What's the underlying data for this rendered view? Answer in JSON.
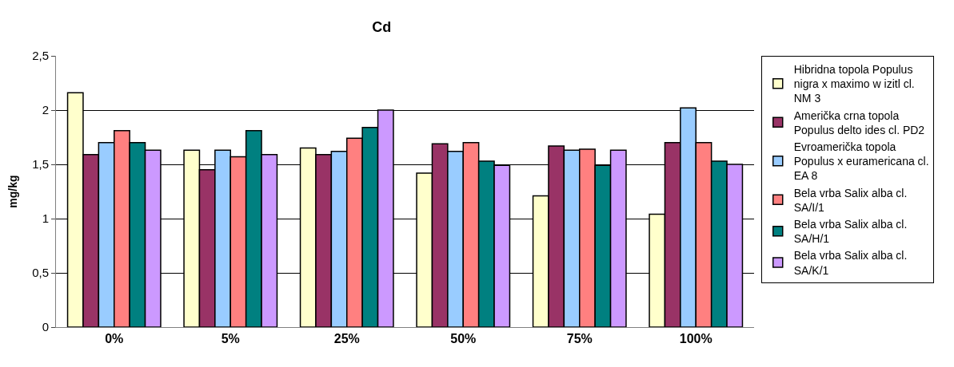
{
  "chart_data": {
    "type": "bar",
    "title": "Cd",
    "ylabel": "mg/kg",
    "categories": [
      "0%",
      "5%",
      "25%",
      "50%",
      "75%",
      "100%"
    ],
    "series": [
      {
        "name": "Hibridna topola Populus nigra x maximo w izitl cl. NM 3",
        "color": "#ffffcc",
        "values": [
          2.16,
          1.63,
          1.65,
          1.42,
          1.21,
          1.04
        ]
      },
      {
        "name": "Američka crna topola Populus delto ides cl. PD2",
        "color": "#993366",
        "values": [
          1.59,
          1.45,
          1.59,
          1.69,
          1.67,
          1.7
        ]
      },
      {
        "name": "Evroamerička topola Populus x euramericana cl. EA 8",
        "color": "#99ccff",
        "values": [
          1.7,
          1.63,
          1.62,
          1.62,
          1.63,
          2.02
        ]
      },
      {
        "name": "Bela vrba Salix alba cl. SA/I/1",
        "color": "#ff8080",
        "values": [
          1.81,
          1.57,
          1.74,
          1.7,
          1.64,
          1.7
        ]
      },
      {
        "name": "Bela vrba Salix alba cl. SA/H/1",
        "color": "#008080",
        "values": [
          1.7,
          1.81,
          1.84,
          1.53,
          1.49,
          1.53
        ]
      },
      {
        "name": "Bela vrba Salix alba cl. SA/K/1",
        "color": "#cc99ff",
        "values": [
          1.63,
          1.59,
          2.0,
          1.49,
          1.63,
          1.5
        ]
      }
    ],
    "ylim": [
      0,
      2.5
    ],
    "yticks": [
      0,
      {
        "value": 0.5,
        "label": "0,5"
      },
      1,
      {
        "value": 1.5,
        "label": "1,5"
      },
      2,
      {
        "value": 2.5,
        "label": "2,5"
      }
    ],
    "grid": "y",
    "legend": "right"
  }
}
